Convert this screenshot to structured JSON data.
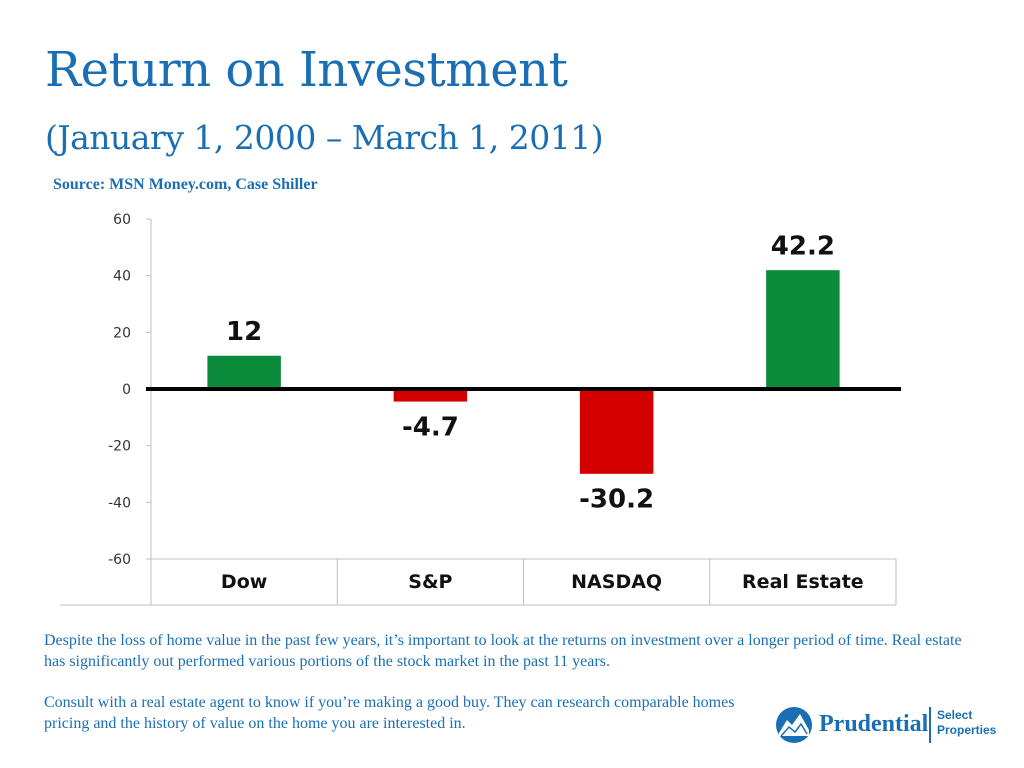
{
  "title": "Return on Investment",
  "subtitle": "(January 1, 2000 – March 1, 2011)",
  "source": "Source: MSN Money.com, Case Shiller",
  "chart_data": {
    "type": "bar",
    "categories": [
      "Dow",
      "S&P",
      "NASDAQ",
      "Real Estate"
    ],
    "values": [
      12,
      -4.7,
      -30.2,
      42.2
    ],
    "data_labels": [
      "12",
      "-4.7",
      "-30.2",
      "42.2"
    ],
    "yticks": [
      "60",
      "40",
      "20",
      "0",
      "-20",
      "-40",
      "-60"
    ],
    "ylim": [
      -60,
      60
    ],
    "grid": false,
    "colors": {
      "positive": "#0a8c3c",
      "negative": "#d40000"
    }
  },
  "paragraphs": [
    "Despite the loss of home value in the past few years, it’s important to look at the returns on investment over a longer period of time.  Real estate has significantly out performed various portions of the stock market in the past 11 years.",
    "Consult with a real estate agent to know if you’re making a good buy. They can research comparable homes pricing and the history of value on the home you are interested in."
  ],
  "logo": {
    "name": "Prudential",
    "tagline_1": "Select",
    "tagline_2": "Properties",
    "icon": "rock-of-gibraltar-icon",
    "color": "#1a6fb4"
  }
}
